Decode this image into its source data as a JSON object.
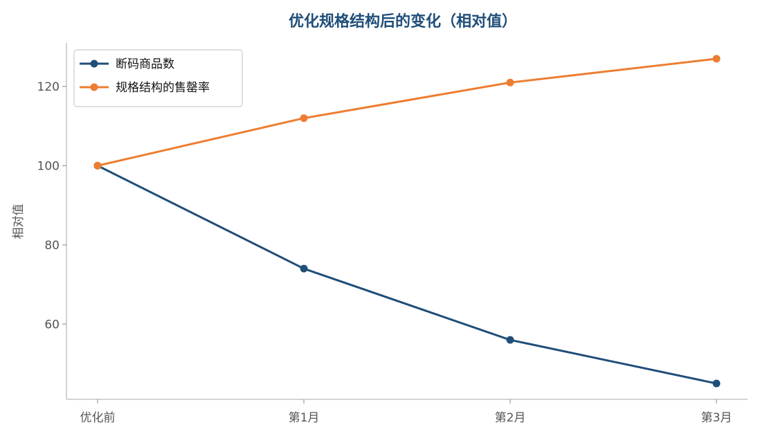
{
  "chart_data": {
    "type": "line",
    "title": "优化规格结构后的变化（相对值）",
    "xlabel": "",
    "ylabel": "相对值",
    "categories": [
      "优化前",
      "第1月",
      "第2月",
      "第3月"
    ],
    "series": [
      {
        "name": "断码商品数",
        "values": [
          100,
          74,
          56,
          45
        ],
        "color": "#1f4e79"
      },
      {
        "name": "规格结构的售罄率",
        "values": [
          100,
          112,
          121,
          127
        ],
        "color": "#ed7d31"
      }
    ],
    "yticks": [
      60,
      80,
      100,
      120
    ],
    "ylim": [
      41,
      131
    ],
    "grid": false,
    "legend": "top-left",
    "title_color": "#1f4e79"
  }
}
